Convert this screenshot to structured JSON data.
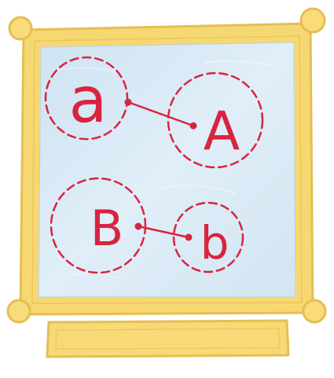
{
  "pairs": [
    {
      "left_letter": "a",
      "right_letter": "A"
    },
    {
      "left_letter": "B",
      "right_letter": "b"
    }
  ],
  "colors": {
    "frame": "#f7d977",
    "frame_outline": "#e9c153",
    "board": "#d6e7f3",
    "ink": "#d8243f"
  },
  "plaque": {
    "text": ""
  }
}
